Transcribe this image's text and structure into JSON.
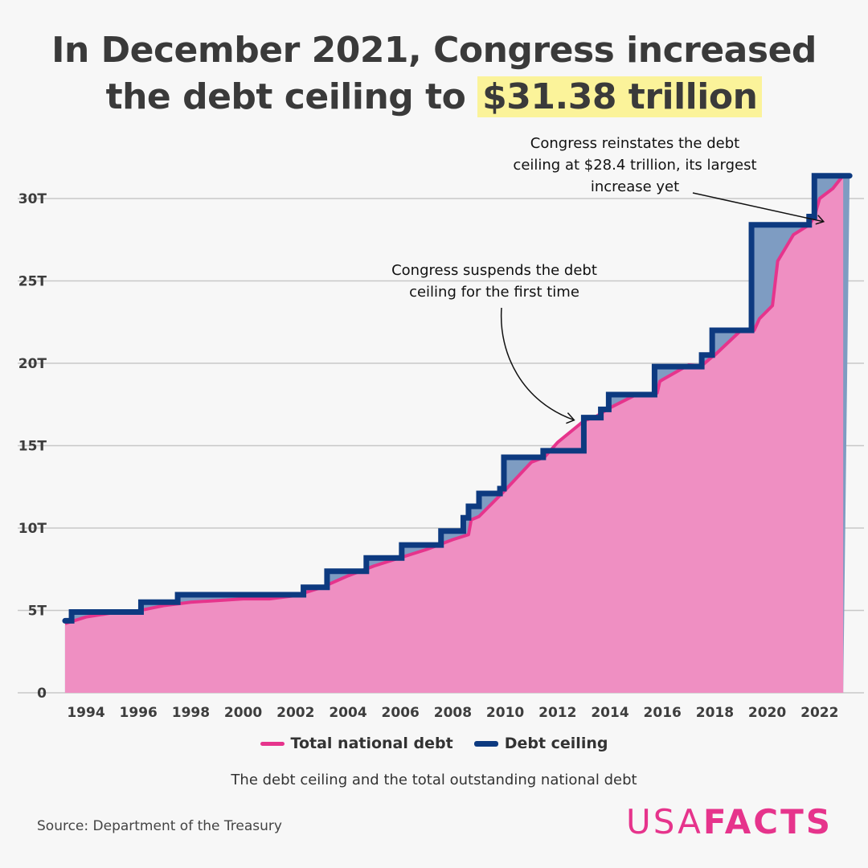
{
  "title": {
    "line1": "In December 2021, Congress increased",
    "line2_prefix": "the debt ceiling to ",
    "highlight": "$31.38 trillion"
  },
  "colors": {
    "debt_line": "#e6348c",
    "debt_fill": "#ef8fc2",
    "ceiling_line": "#0d3a80",
    "ceiling_fill": "#7e9cc2",
    "highlight": "#fbf39a",
    "logo": "#e6348c"
  },
  "chart_data": {
    "type": "area",
    "xlim": [
      1993.2,
      2023.1
    ],
    "ylim": [
      0,
      32
    ],
    "x_ticks": [
      "1994",
      "1996",
      "1998",
      "2000",
      "2002",
      "2004",
      "2006",
      "2008",
      "2010",
      "2012",
      "2014",
      "2016",
      "2018",
      "2020",
      "2022"
    ],
    "y_ticks": [
      {
        "v": 0,
        "label": "0"
      },
      {
        "v": 5,
        "label": "5T"
      },
      {
        "v": 10,
        "label": "10T"
      },
      {
        "v": 15,
        "label": "15T"
      },
      {
        "v": 20,
        "label": "20T"
      },
      {
        "v": 25,
        "label": "25T"
      },
      {
        "v": 30,
        "label": "30T"
      }
    ],
    "grid": true,
    "legend": {
      "placement": "bottom",
      "entries": [
        "Total national debt",
        "Debt ceiling"
      ]
    },
    "series": [
      {
        "name": "Total national debt",
        "unit": "trillion USD",
        "points": [
          [
            1993.2,
            4.2
          ],
          [
            1994,
            4.6
          ],
          [
            1995,
            4.85
          ],
          [
            1996,
            4.98
          ],
          [
            1997,
            5.3
          ],
          [
            1998,
            5.5
          ],
          [
            1999,
            5.6
          ],
          [
            2000,
            5.7
          ],
          [
            2001,
            5.7
          ],
          [
            2002,
            5.9
          ],
          [
            2003,
            6.4
          ],
          [
            2004,
            7.1
          ],
          [
            2005,
            7.7
          ],
          [
            2006,
            8.2
          ],
          [
            2007,
            8.7
          ],
          [
            2008,
            9.3
          ],
          [
            2008.6,
            9.6
          ],
          [
            2008.7,
            10.5
          ],
          [
            2009,
            10.7
          ],
          [
            2010,
            12.3
          ],
          [
            2011,
            14.0
          ],
          [
            2011.5,
            14.3
          ],
          [
            2012,
            15.2
          ],
          [
            2013,
            16.5
          ],
          [
            2013.5,
            16.8
          ],
          [
            2014,
            17.3
          ],
          [
            2015,
            18.1
          ],
          [
            2015.8,
            18.2
          ],
          [
            2015.9,
            18.9
          ],
          [
            2016,
            19.0
          ],
          [
            2017,
            19.9
          ],
          [
            2017.5,
            19.85
          ],
          [
            2017.9,
            20.4
          ],
          [
            2018,
            20.5
          ],
          [
            2019,
            22.0
          ],
          [
            2019.5,
            22.0
          ],
          [
            2019.7,
            22.7
          ],
          [
            2020.2,
            23.5
          ],
          [
            2020.4,
            26.2
          ],
          [
            2021,
            27.8
          ],
          [
            2021.6,
            28.4
          ],
          [
            2021.8,
            28.9
          ],
          [
            2022,
            30.0
          ],
          [
            2022.5,
            30.6
          ],
          [
            2022.9,
            31.4
          ]
        ]
      },
      {
        "name": "Debt ceiling",
        "unit": "trillion USD",
        "steps": [
          [
            1993.2,
            4.37
          ],
          [
            1993.45,
            4.9
          ],
          [
            1996.1,
            5.5
          ],
          [
            1997.5,
            5.95
          ],
          [
            2002.3,
            6.4
          ],
          [
            2003.2,
            7.38
          ],
          [
            2004.7,
            8.18
          ],
          [
            2006.05,
            8.97
          ],
          [
            2007.55,
            9.82
          ],
          [
            2008.4,
            10.62
          ],
          [
            2008.6,
            11.32
          ],
          [
            2009.0,
            12.1
          ],
          [
            2009.8,
            12.39
          ],
          [
            2009.95,
            14.29
          ],
          [
            2011.45,
            14.69
          ],
          [
            2013.0,
            16.7
          ],
          [
            2013.65,
            17.2
          ],
          [
            2013.95,
            18.1
          ],
          [
            2015.7,
            19.8
          ],
          [
            2017.5,
            20.5
          ],
          [
            2017.9,
            22.0
          ],
          [
            2019.4,
            28.4
          ],
          [
            2021.6,
            28.9
          ],
          [
            2021.8,
            31.38
          ]
        ],
        "end": 2022.9
      }
    ],
    "annotations": [
      {
        "lines": [
          "Congress suspends the debt",
          "ceiling for the first time"
        ],
        "target": [
          2013.0,
          16.7
        ]
      },
      {
        "lines": [
          "Congress reinstates the debt",
          "ceiling at $28.4 trillion, its largest",
          "increase yet"
        ],
        "target": [
          2021.6,
          28.4
        ]
      }
    ],
    "subtitle": "The debt ceiling and the total outstanding national debt"
  },
  "source": "Source: Department of the Treasury",
  "logo": {
    "part1": "USA",
    "part2": "FACTS"
  }
}
